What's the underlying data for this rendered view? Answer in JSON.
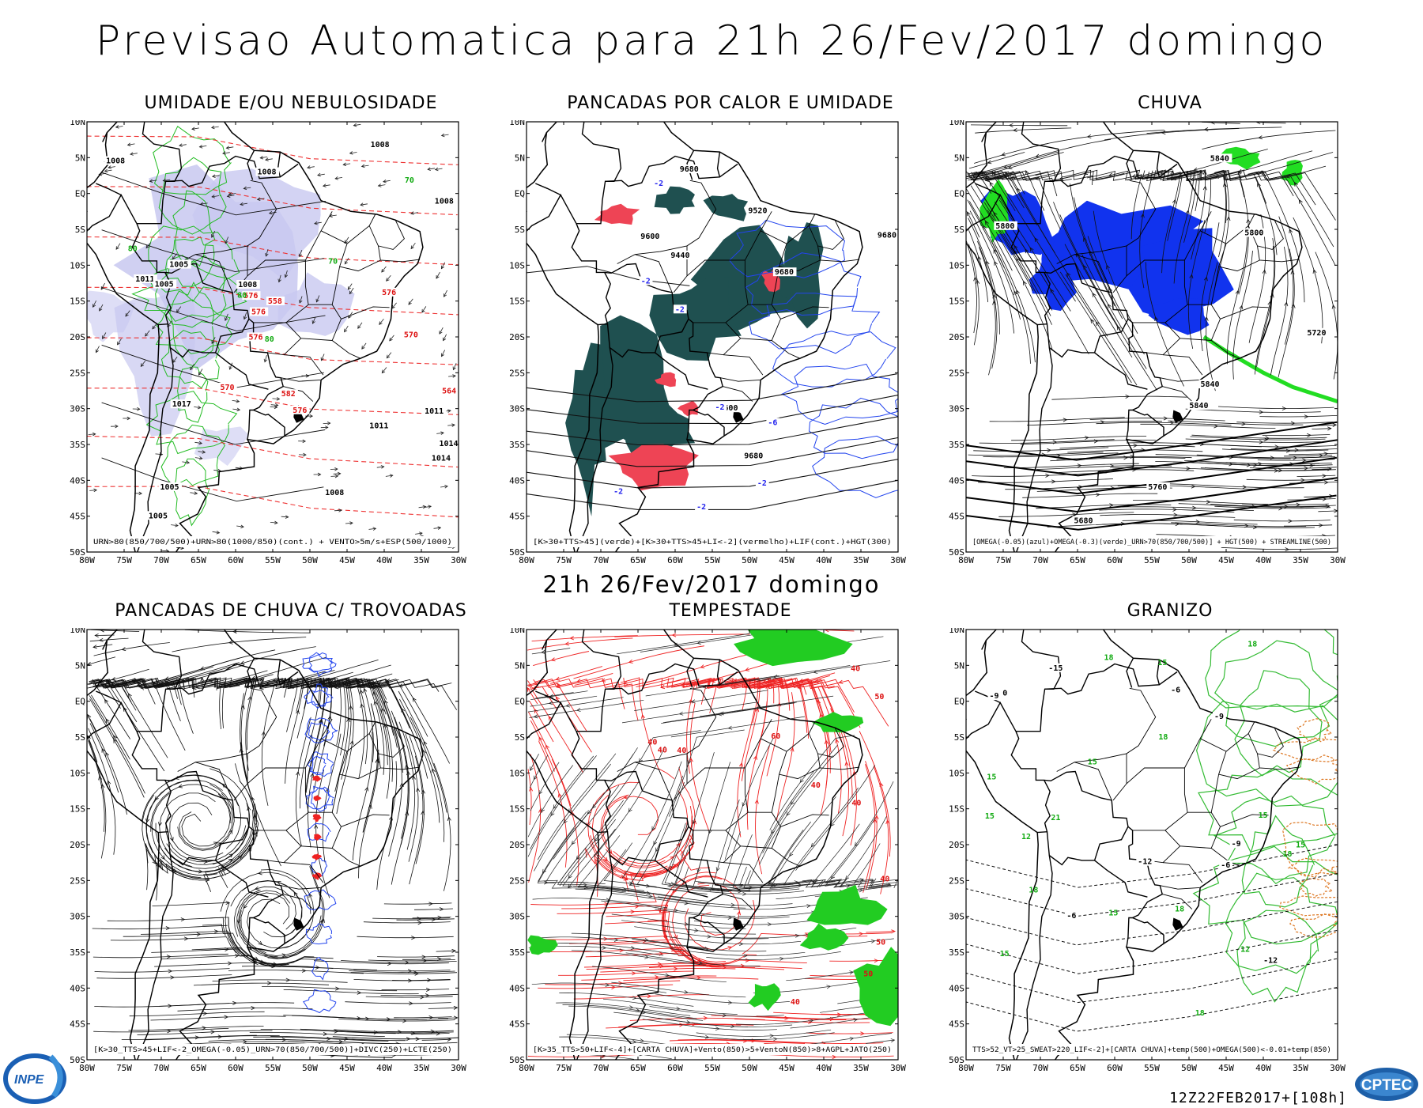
{
  "header": {
    "title": "Previsao Automatica  para 21h 26/Fev/2017 domingo",
    "subtitle": "21h 26/Fev/2017 domingo"
  },
  "lat_labels": [
    "10N",
    "5N",
    "EQ",
    "5S",
    "10S",
    "15S",
    "20S",
    "25S",
    "30S",
    "35S",
    "40S",
    "45S",
    "50S"
  ],
  "lon_labels": [
    "80W",
    "75W",
    "70W",
    "65W",
    "60W",
    "55W",
    "50W",
    "45W",
    "40W",
    "35W",
    "30W"
  ],
  "panels": [
    {
      "title": "UMIDADE E/OU NEBULOSIDADE",
      "legend": "URN>80(850/700/500)+URN>80(1000/850)(cont.) + VENTO>5m/s+ESP(500/1000)",
      "scheme": "humidity",
      "contour_labels": [
        "1008",
        "1011",
        "1011",
        "1008",
        "1008",
        "1008",
        "1005",
        "1014",
        "1005",
        "1005",
        "1008",
        "1011",
        "1017",
        "1014",
        "1008",
        "1005",
        "576",
        "576",
        "576",
        "576",
        "582",
        "570",
        "570",
        "576",
        "558",
        "564",
        "80",
        "70",
        "80",
        "70",
        "80"
      ]
    },
    {
      "title": "PANCADAS POR CALOR E UMIDADE",
      "legend": "[K>30+TTS>45](verde)+[K>30+TTS>45+LI<-2](vermelho)+LIF(cont.)+HGT(300)",
      "scheme": "convective",
      "contour_labels": [
        "9680",
        "9680",
        "9680",
        "9680",
        "9600",
        "9600",
        "9520",
        "9440",
        "-2",
        "-2",
        "-2",
        "-2",
        "-2",
        "-6",
        "-2",
        "-2"
      ]
    },
    {
      "title": "CHUVA",
      "legend": "[OMEGA(-0.05)(azul)+OMEGA(-0.3)(verde)_URN>70(850/700/500)] + HGT(500) + STREAMLINE(500)",
      "scheme": "rain",
      "contour_labels": [
        "5840",
        "5840",
        "5840",
        "5800",
        "5800",
        "5760",
        "5720",
        "5680"
      ]
    },
    {
      "title": "PANCADAS DE CHUVA C/ TROVOADAS",
      "legend": "[K>30_TTS>45+LIF<-2_OMEGA(-0.05)_URN>70(850/700/500)]+DIVC(250)+LCTE(250)",
      "scheme": "thunder",
      "contour_labels": []
    },
    {
      "title": "TEMPESTADE",
      "legend": "[K>35_TTS>50+LIF<-4]+[CARTA CHUVA]+Vento(850)>5+VentoN(850)>8+AGPL+JATO(250)",
      "scheme": "storm",
      "contour_labels": [
        "60",
        "50",
        "50",
        "40",
        "40",
        "40",
        "40",
        "40",
        "40",
        "40",
        "40",
        "50"
      ]
    },
    {
      "title": "GRANIZO",
      "legend": "TTS>52_VT>25_SWEAT>220_LIF<-2]+[CARTA CHUVA]+temp(500)+OMEGA(500)<-0.01+temp(850)",
      "scheme": "hail",
      "contour_labels": [
        "15",
        "18",
        "15",
        "15",
        "15",
        "18",
        "18",
        "18",
        "18",
        "21",
        "18",
        "18",
        "15",
        "12",
        "15",
        "15",
        "12",
        "15",
        "-6",
        "-6",
        "-6",
        "-9",
        "-9",
        "-9",
        "-12",
        "-12",
        "-15",
        "0"
      ]
    }
  ],
  "run_info": "12Z22FEB2017+[108h]",
  "logos": {
    "left": "INPE",
    "right": "CPTEC"
  },
  "colors": {
    "humidity_fill": "#c8c8f0",
    "humidity_line": "#22bb22",
    "height_line": "#ee3333",
    "conv_teal": "#1f5050",
    "conv_red": "#ee4455",
    "lif_blue": "#2244ee",
    "rain_blue": "#1133ee",
    "rain_green": "#22dd22",
    "storm_red": "#ee2222",
    "storm_green": "#22cc22",
    "hail_green": "#33bb33",
    "hail_orange": "#dd7722"
  }
}
